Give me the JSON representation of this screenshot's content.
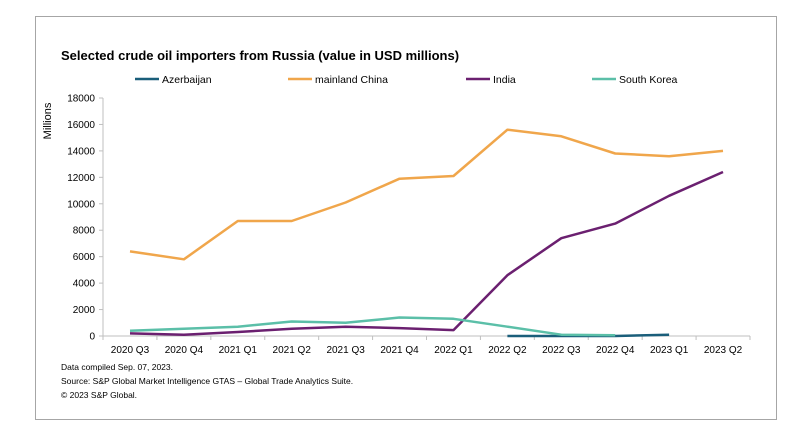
{
  "chart_data": {
    "type": "line",
    "title": "Selected crude oil importers from Russia (value in USD millions)",
    "ylabel": "Millions",
    "xlabel": "",
    "ylim": [
      0,
      18000
    ],
    "yticks": [
      0,
      2000,
      4000,
      6000,
      8000,
      10000,
      12000,
      14000,
      16000,
      18000
    ],
    "grid": false,
    "legend_position": "top",
    "categories": [
      "2020 Q3",
      "2020 Q4",
      "2021 Q1",
      "2021 Q2",
      "2021 Q3",
      "2021 Q4",
      "2022 Q1",
      "2022 Q2",
      "2022 Q3",
      "2022 Q4",
      "2023 Q1",
      "2023 Q2"
    ],
    "series": [
      {
        "name": "Azerbaijan",
        "color": "#1a5e7a",
        "values": [
          null,
          null,
          null,
          null,
          null,
          null,
          null,
          0,
          0,
          0,
          100,
          null
        ]
      },
      {
        "name": "mainland China",
        "color": "#f0a64b",
        "values": [
          6400,
          5800,
          8700,
          8700,
          10100,
          11900,
          12100,
          15600,
          15100,
          13800,
          13600,
          14000
        ]
      },
      {
        "name": "India",
        "color": "#6b2070",
        "values": [
          200,
          100,
          300,
          550,
          700,
          600,
          450,
          4600,
          7400,
          8500,
          10600,
          12400
        ]
      },
      {
        "name": "South Korea",
        "color": "#5bbfa8",
        "values": [
          400,
          550,
          700,
          1100,
          1000,
          1400,
          1300,
          700,
          100,
          50,
          null,
          null
        ]
      }
    ]
  },
  "footnotes": {
    "line1": "Data compiled Sep. 07, 2023.",
    "line2": "Source: S&P Global Market Intelligence GTAS – Global Trade Analytics Suite.",
    "line3": "© 2023 S&P Global."
  }
}
